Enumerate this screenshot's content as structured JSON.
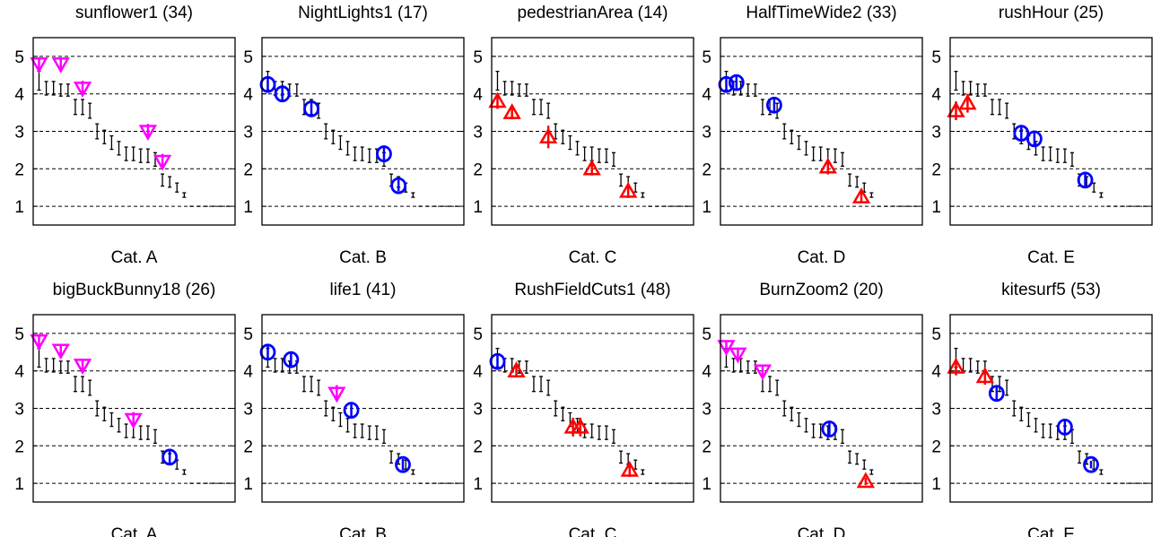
{
  "chart_data": {
    "type": "scatter",
    "layout": "2x5 small multiples",
    "ylim": [
      0.5,
      5.5
    ],
    "yticks": [
      1,
      2,
      3,
      4,
      5
    ],
    "grid": "horizontal dashed",
    "legend": "none",
    "colors": {
      "magenta": "#ff00ff",
      "blue": "#0000ff",
      "red": "#ff0000",
      "black": "#000000"
    },
    "marker_shapes": {
      "magenta": "triangle-down",
      "blue": "circle",
      "red": "triangle-up"
    },
    "reference_scale": {
      "description": "black error bars shared by all panels, sorted descending",
      "x": [
        1,
        2,
        3,
        4,
        5,
        6,
        7,
        8,
        9,
        10,
        11,
        12,
        13,
        14,
        15,
        16,
        17,
        18,
        19,
        20,
        21,
        22,
        23,
        24,
        25,
        26,
        27
      ],
      "y": [
        4.35,
        4.15,
        4.15,
        4.1,
        4.1,
        3.65,
        3.65,
        3.55,
        3.0,
        2.85,
        2.7,
        2.55,
        2.4,
        2.4,
        2.35,
        2.35,
        2.25,
        1.7,
        1.65,
        1.5,
        1.3,
        1.0,
        1.0,
        1.0,
        1.0,
        1.0,
        1.0
      ],
      "err": [
        0.25,
        0.18,
        0.18,
        0.16,
        0.16,
        0.2,
        0.2,
        0.2,
        0.2,
        0.18,
        0.18,
        0.18,
        0.18,
        0.18,
        0.18,
        0.18,
        0.18,
        0.16,
        0.14,
        0.12,
        0.06,
        0,
        0,
        0,
        0,
        0,
        0
      ]
    },
    "panels": [
      {
        "title": "sunflower1 (34)",
        "xlabel": "Cat. A",
        "points": [
          {
            "x": 1,
            "y": 4.8,
            "err": 0.18,
            "color": "magenta"
          },
          {
            "x": 4,
            "y": 4.8,
            "err": 0.15,
            "color": "magenta"
          },
          {
            "x": 7,
            "y": 4.15,
            "err": 0.2,
            "color": "magenta"
          },
          {
            "x": 16,
            "y": 3.0,
            "err": 0.2,
            "color": "magenta"
          },
          {
            "x": 18,
            "y": 2.2,
            "err": 0.2,
            "color": "magenta"
          }
        ]
      },
      {
        "title": "NightLights1 (17)",
        "xlabel": "Cat. B",
        "points": [
          {
            "x": 1,
            "y": 4.25,
            "err": 0.22,
            "color": "blue"
          },
          {
            "x": 3,
            "y": 4.0,
            "err": 0.2,
            "color": "blue"
          },
          {
            "x": 7,
            "y": 3.6,
            "err": 0.2,
            "color": "blue"
          },
          {
            "x": 17,
            "y": 2.4,
            "err": 0.2,
            "color": "blue"
          },
          {
            "x": 19,
            "y": 1.55,
            "err": 0.15,
            "color": "blue"
          }
        ]
      },
      {
        "title": "pedestrianArea (14)",
        "xlabel": "Cat. C",
        "points": [
          {
            "x": 1,
            "y": 3.8,
            "err": 0.2,
            "color": "red"
          },
          {
            "x": 3,
            "y": 3.5,
            "err": 0.18,
            "color": "red"
          },
          {
            "x": 8,
            "y": 2.85,
            "err": 0.3,
            "color": "red"
          },
          {
            "x": 14,
            "y": 2.0,
            "err": 0.18,
            "color": "red"
          },
          {
            "x": 19,
            "y": 1.4,
            "err": 0.18,
            "color": "red"
          }
        ]
      },
      {
        "title": "HalfTimeWide2 (33)",
        "xlabel": "Cat. D",
        "points": [
          {
            "x": 1,
            "y": 4.25,
            "err": 0.2,
            "color": "blue"
          },
          {
            "x": 2.4,
            "y": 4.3,
            "err": 0.18,
            "color": "blue"
          },
          {
            "x": 7.6,
            "y": 3.7,
            "err": 0.2,
            "color": "blue"
          },
          {
            "x": 15,
            "y": 2.05,
            "err": 0.2,
            "color": "red"
          },
          {
            "x": 19.6,
            "y": 1.25,
            "err": 0.15,
            "color": "red"
          }
        ]
      },
      {
        "title": "rushHour (25)",
        "xlabel": "Cat. E",
        "points": [
          {
            "x": 1,
            "y": 3.55,
            "err": 0.25,
            "color": "red"
          },
          {
            "x": 2.6,
            "y": 3.75,
            "err": 0.25,
            "color": "red"
          },
          {
            "x": 10,
            "y": 2.95,
            "err": 0.2,
            "color": "blue"
          },
          {
            "x": 11.8,
            "y": 2.8,
            "err": 0.2,
            "color": "blue"
          },
          {
            "x": 18.8,
            "y": 1.7,
            "err": 0.18,
            "color": "blue"
          }
        ]
      },
      {
        "title": "bigBuckBunny18 (26)",
        "xlabel": "Cat. A",
        "points": [
          {
            "x": 1,
            "y": 4.8,
            "err": 0.18,
            "color": "magenta"
          },
          {
            "x": 4,
            "y": 4.55,
            "err": 0.15,
            "color": "magenta"
          },
          {
            "x": 7,
            "y": 4.15,
            "err": 0.18,
            "color": "magenta"
          },
          {
            "x": 14,
            "y": 2.7,
            "err": 0.2,
            "color": "magenta"
          },
          {
            "x": 19,
            "y": 1.7,
            "err": 0.2,
            "color": "blue"
          }
        ]
      },
      {
        "title": "life1 (41)",
        "xlabel": "Cat. B",
        "points": [
          {
            "x": 1,
            "y": 4.5,
            "err": 0.2,
            "color": "blue"
          },
          {
            "x": 4.2,
            "y": 4.3,
            "err": 0.2,
            "color": "blue"
          },
          {
            "x": 10.5,
            "y": 3.4,
            "err": 0.22,
            "color": "magenta"
          },
          {
            "x": 12.5,
            "y": 2.95,
            "err": 0.2,
            "color": "blue"
          },
          {
            "x": 19.6,
            "y": 1.5,
            "err": 0.15,
            "color": "blue"
          }
        ]
      },
      {
        "title": "RushFieldCuts1 (48)",
        "xlabel": "Cat. C",
        "points": [
          {
            "x": 1,
            "y": 4.25,
            "err": 0.2,
            "color": "blue"
          },
          {
            "x": 3.6,
            "y": 4.0,
            "err": 0.18,
            "color": "red"
          },
          {
            "x": 11.4,
            "y": 2.5,
            "err": 0.25,
            "color": "red"
          },
          {
            "x": 12.4,
            "y": 2.5,
            "err": 0.25,
            "color": "red"
          },
          {
            "x": 19.2,
            "y": 1.35,
            "err": 0.18,
            "color": "red"
          }
        ]
      },
      {
        "title": "BurnZoom2 (20)",
        "xlabel": "Cat. D",
        "points": [
          {
            "x": 1,
            "y": 4.65,
            "err": 0.15,
            "color": "magenta"
          },
          {
            "x": 2.6,
            "y": 4.45,
            "err": 0.15,
            "color": "magenta"
          },
          {
            "x": 6,
            "y": 4.0,
            "err": 0.15,
            "color": "magenta"
          },
          {
            "x": 15.2,
            "y": 2.45,
            "err": 0.2,
            "color": "blue"
          },
          {
            "x": 20.2,
            "y": 1.05,
            "err": 0.1,
            "color": "red"
          }
        ]
      },
      {
        "title": "kitesurf5 (53)",
        "xlabel": "Cat. E",
        "points": [
          {
            "x": 1,
            "y": 4.1,
            "err": 0.22,
            "color": "red"
          },
          {
            "x": 5,
            "y": 3.85,
            "err": 0.22,
            "color": "red"
          },
          {
            "x": 6.6,
            "y": 3.4,
            "err": 0.2,
            "color": "blue"
          },
          {
            "x": 16,
            "y": 2.5,
            "err": 0.2,
            "color": "blue"
          },
          {
            "x": 19.6,
            "y": 1.5,
            "err": 0.1,
            "color": "blue"
          }
        ]
      }
    ]
  }
}
